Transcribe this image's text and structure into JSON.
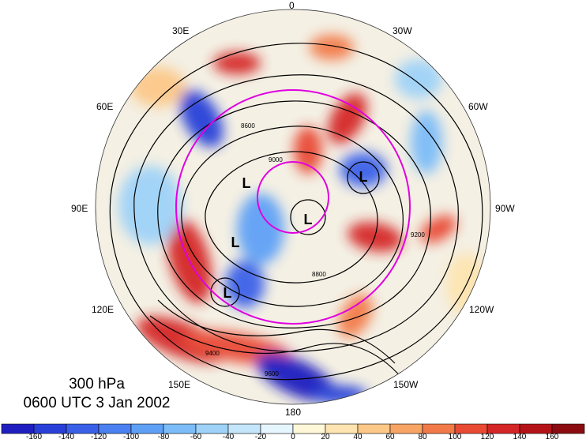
{
  "map": {
    "projection": "north-polar-stereographic",
    "longitude_labels": [
      {
        "id": "lon-0",
        "text": "0"
      },
      {
        "id": "lon-30w",
        "text": "30W"
      },
      {
        "id": "lon-60w",
        "text": "60W"
      },
      {
        "id": "lon-90w",
        "text": "90W"
      },
      {
        "id": "lon-120w",
        "text": "120W"
      },
      {
        "id": "lon-150w",
        "text": "150W"
      },
      {
        "id": "lon-180",
        "text": "180"
      },
      {
        "id": "lon-150e",
        "text": "150E"
      },
      {
        "id": "lon-120e",
        "text": "120E"
      },
      {
        "id": "lon-90e",
        "text": "90E"
      },
      {
        "id": "lon-60e",
        "text": "60E"
      },
      {
        "id": "lon-30e",
        "text": "30E"
      }
    ],
    "low_markers": [
      "L",
      "L",
      "L",
      "L",
      "L"
    ],
    "contour_labels": [
      "9400",
      "9200",
      "9000",
      "8800",
      "8600",
      "9600"
    ],
    "overlay_circle_color": "#e000e0",
    "contour_color": "#000000"
  },
  "title": {
    "level": "300 hPa",
    "time": "0600 UTC 3 Jan 2002"
  },
  "colorbar": {
    "ticks": [
      "-160",
      "-140",
      "-120",
      "-100",
      "-80",
      "-60",
      "-40",
      "-20",
      "0",
      "20",
      "40",
      "60",
      "80",
      "100",
      "120",
      "140",
      "160"
    ],
    "colors": [
      "#1f1fbf",
      "#2840d8",
      "#3a60e8",
      "#4a80f0",
      "#5ea0f6",
      "#7cbcf8",
      "#9ed2f8",
      "#c4e6fa",
      "#e6f6ff",
      "#fff8d8",
      "#fde4b0",
      "#fcc888",
      "#f8a464",
      "#f27a48",
      "#e84a34",
      "#d42626",
      "#b41418",
      "#8a0c10"
    ]
  }
}
